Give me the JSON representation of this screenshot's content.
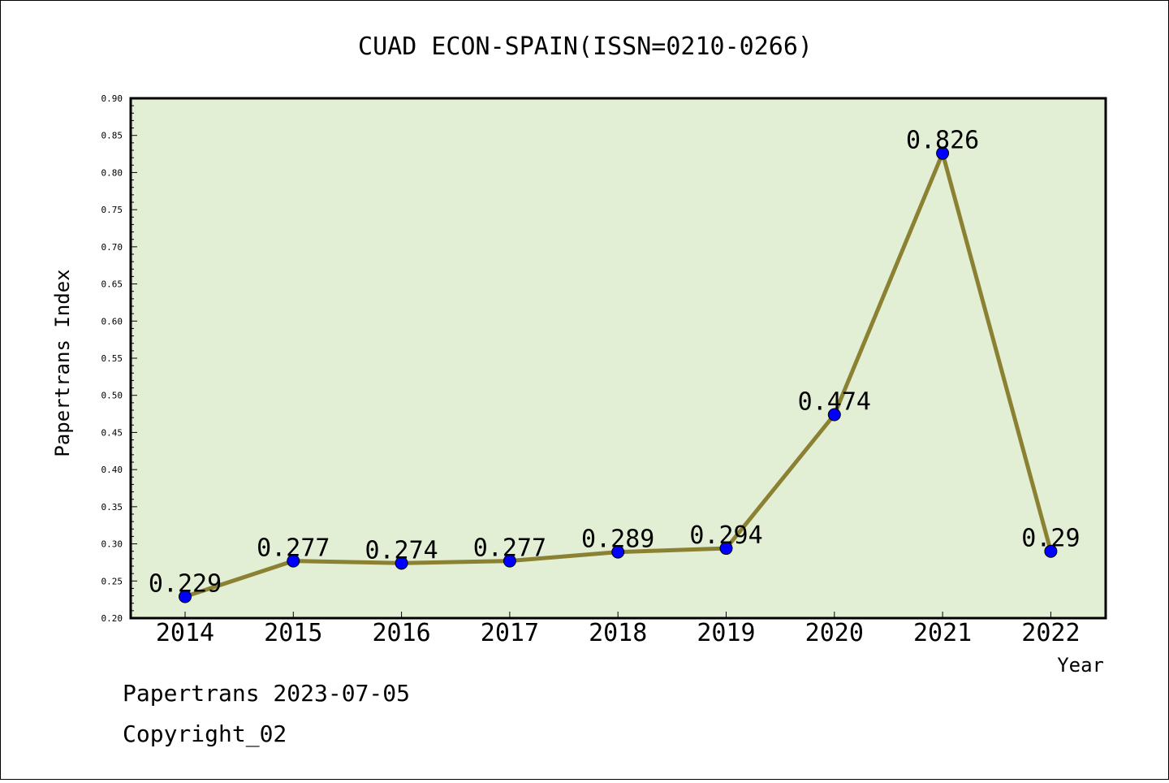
{
  "footer": {
    "line1": "Papertrans 2023-07-05",
    "line2": "Copyright_02"
  },
  "chart_data": {
    "type": "line",
    "title": "CUAD ECON-SPAIN(ISSN=0210-0266)",
    "xlabel": "Year",
    "ylabel": "Papertrans Index",
    "categories": [
      "2014",
      "2015",
      "2016",
      "2017",
      "2018",
      "2019",
      "2020",
      "2021",
      "2022"
    ],
    "values": [
      0.229,
      0.277,
      0.274,
      0.277,
      0.289,
      0.294,
      0.474,
      0.826,
      0.29
    ],
    "value_labels": [
      "0.229",
      "0.277",
      "0.274",
      "0.277",
      "0.289",
      "0.294",
      "0.474",
      "0.826",
      "0.29"
    ],
    "ylim": [
      0.2,
      0.9
    ],
    "yticks": [
      "0.20",
      "0.25",
      "0.30",
      "0.35",
      "0.40",
      "0.45",
      "0.50",
      "0.55",
      "0.60",
      "0.65",
      "0.70",
      "0.75",
      "0.80",
      "0.85",
      "0.90"
    ],
    "grid": false,
    "colors": {
      "plot_background": "#e2efd5",
      "line": "#8b8132",
      "marker": "#0000ff"
    }
  }
}
